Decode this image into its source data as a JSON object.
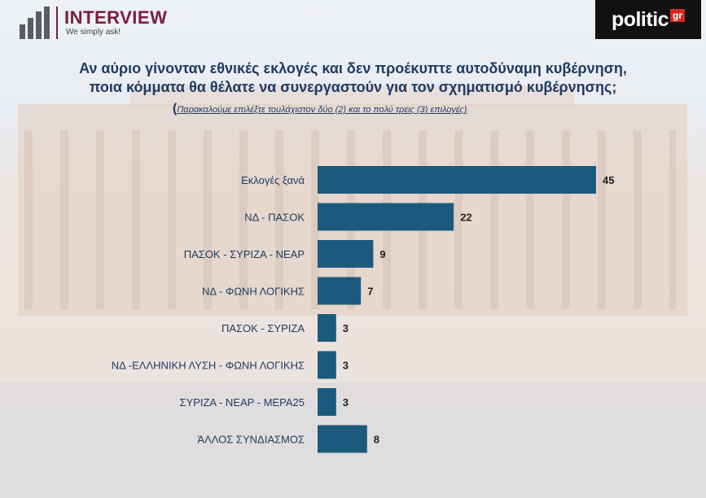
{
  "logos": {
    "interview": {
      "name": "INTERVIEW",
      "tagline": "We simply ask!"
    },
    "politic": {
      "name": "politic",
      "suffix": "gr"
    }
  },
  "question": {
    "line1": "Αν αύριο γίνονταν εθνικές εκλογές και δεν προέκυπτε αυτοδύναμη κυβέρνηση,",
    "line2": "ποια κόμματα θα θέλατε να συνεργαστούν για τον σχηματισμό κυβέρνησης;",
    "instruction_open": "(",
    "instruction": "Παρακαλούμε επιλέξτε τουλάχιστον δύο (2) και το πολύ τρεις (3) επιλογές)"
  },
  "colors": {
    "bar": "#1c5a7d",
    "title": "#1f3b63"
  },
  "chart_data": {
    "type": "bar",
    "orientation": "horizontal",
    "categories": [
      "Εκλογές ξανά",
      "ΝΔ - ΠΑΣΟΚ",
      "ΠΑΣΟΚ - ΣΥΡΙΖΑ - ΝΕΑΡ",
      "ΝΔ - ΦΩΝΗ ΛΟΓΙΚΗΣ",
      "ΠΑΣΟΚ - ΣΥΡΙΖΑ",
      "ΝΔ -ΕΛΛΗΝΙΚΗ ΛΥΣΗ - ΦΩΝΗ ΛΟΓΙΚΗΣ",
      "ΣΥΡΙΖΑ - ΝΕΑΡ - ΜΕΡΑ25",
      "ΆΛΛΟΣ ΣΥΝΔΙΑΣΜΟΣ"
    ],
    "values": [
      45,
      22,
      9,
      7,
      3,
      3,
      3,
      8
    ],
    "grid": false,
    "legend": "none"
  }
}
